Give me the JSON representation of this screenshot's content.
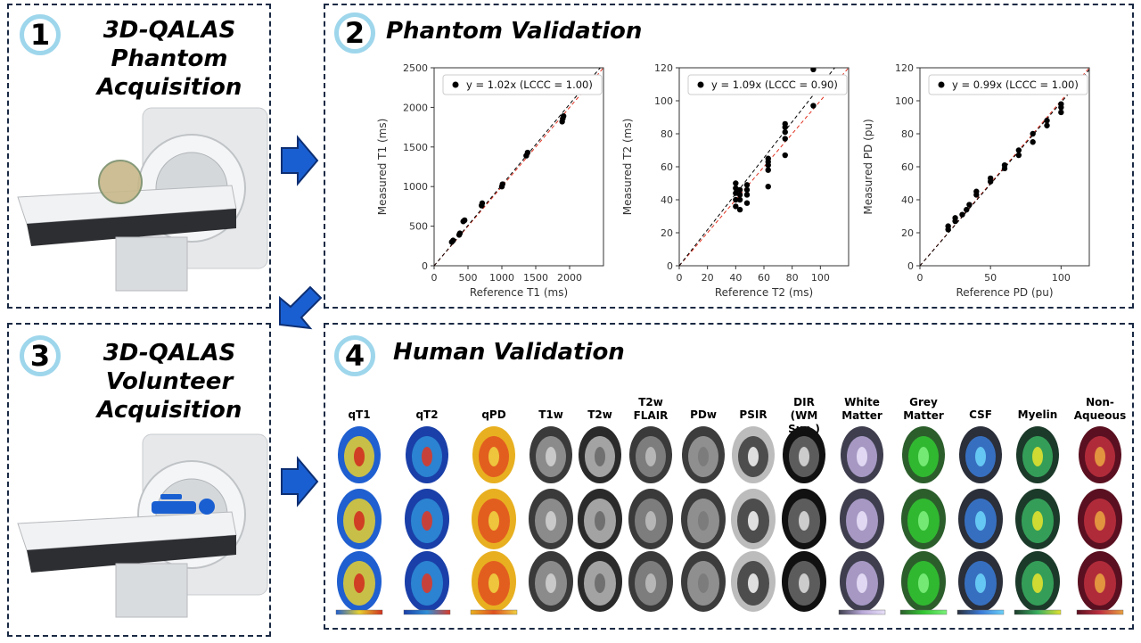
{
  "panel1": {
    "number": "1",
    "title_lines": [
      "3D-QALAS",
      "Phantom",
      "Acquisition"
    ]
  },
  "panel2": {
    "number": "2",
    "title": "Phantom Validation"
  },
  "panel3": {
    "number": "3",
    "title_lines": [
      "3D-QALAS",
      "Volunteer",
      "Acquisition"
    ]
  },
  "panel4": {
    "number": "4",
    "title": "Human Validation"
  },
  "chart_data": [
    {
      "type": "scatter",
      "title": "",
      "xlabel": "Reference T1 (ms)",
      "ylabel": "Measured T1 (ms)",
      "xlim": [
        0,
        2500
      ],
      "ylim": [
        0,
        2500
      ],
      "xticks": [
        0,
        500,
        1000,
        1500,
        2000
      ],
      "yticks": [
        0,
        500,
        1000,
        1500,
        2000,
        2500
      ],
      "legend": "y = 1.02x (LCCC = 1.00)",
      "legend_position": "top",
      "fit_slope": 1.02,
      "points": [
        [
          260,
          300
        ],
        [
          280,
          320
        ],
        [
          370,
          390
        ],
        [
          380,
          410
        ],
        [
          430,
          560
        ],
        [
          450,
          575
        ],
        [
          700,
          760
        ],
        [
          710,
          790
        ],
        [
          1000,
          1000
        ],
        [
          1010,
          1030
        ],
        [
          1360,
          1390
        ],
        [
          1380,
          1430
        ],
        [
          1890,
          1820
        ],
        [
          1900,
          1860
        ],
        [
          1910,
          1890
        ]
      ]
    },
    {
      "type": "scatter",
      "title": "",
      "xlabel": "Reference T2 (ms)",
      "ylabel": "Measured T2 (ms)",
      "xlim": [
        0,
        120
      ],
      "ylim": [
        0,
        120
      ],
      "xticks": [
        0,
        20,
        40,
        60,
        80,
        100
      ],
      "yticks": [
        0,
        20,
        40,
        60,
        80,
        100,
        120
      ],
      "legend": "y = 1.09x (LCCC = 0.90)",
      "legend_position": "top",
      "fit_slope": 1.09,
      "points": [
        [
          40,
          36
        ],
        [
          40,
          40
        ],
        [
          40,
          44
        ],
        [
          40,
          47
        ],
        [
          40,
          50
        ],
        [
          43,
          34
        ],
        [
          43,
          40
        ],
        [
          43,
          43
        ],
        [
          43,
          46
        ],
        [
          48,
          38
        ],
        [
          48,
          43
        ],
        [
          48,
          46
        ],
        [
          48,
          49
        ],
        [
          63,
          48
        ],
        [
          63,
          58
        ],
        [
          63,
          61
        ],
        [
          63,
          63
        ],
        [
          63,
          65
        ],
        [
          75,
          67
        ],
        [
          75,
          77
        ],
        [
          75,
          81
        ],
        [
          75,
          84
        ],
        [
          75,
          86
        ],
        [
          95,
          97
        ],
        [
          95,
          119
        ]
      ]
    },
    {
      "type": "scatter",
      "title": "",
      "xlabel": "Reference PD (pu)",
      "ylabel": "Measured PD (pu)",
      "xlim": [
        0,
        120
      ],
      "ylim": [
        0,
        120
      ],
      "xticks": [
        0,
        50,
        100
      ],
      "yticks": [
        0,
        20,
        40,
        60,
        80,
        100,
        120
      ],
      "legend": "y = 0.99x (LCCC = 1.00)",
      "legend_position": "top",
      "fit_slope": 0.99,
      "points": [
        [
          20,
          22
        ],
        [
          20,
          24
        ],
        [
          25,
          27
        ],
        [
          25,
          29
        ],
        [
          30,
          31
        ],
        [
          33,
          34
        ],
        [
          35,
          37
        ],
        [
          40,
          43
        ],
        [
          40,
          45
        ],
        [
          50,
          51
        ],
        [
          50,
          53
        ],
        [
          60,
          59
        ],
        [
          60,
          61
        ],
        [
          70,
          67
        ],
        [
          70,
          70
        ],
        [
          80,
          75
        ],
        [
          80,
          80
        ],
        [
          90,
          85
        ],
        [
          90,
          88
        ],
        [
          100,
          93
        ],
        [
          100,
          96
        ],
        [
          100,
          98
        ]
      ]
    }
  ],
  "human": {
    "columns": [
      "qT1",
      "qT2",
      "qPD",
      "T1w",
      "T2w",
      "T2w\nFLAIR",
      "PDw",
      "PSIR",
      "DIR\n(WM Sup.)",
      "White\nMatter",
      "Grey\nMatter",
      "CSF",
      "Myelin",
      "Non-\nAqueous"
    ]
  },
  "colors": {
    "border": "#1a2a44",
    "badge_ring": "#9ed6ec",
    "arrow": "#1a5fd1",
    "fit_line": "#000000",
    "identity_line": "#e03020"
  }
}
